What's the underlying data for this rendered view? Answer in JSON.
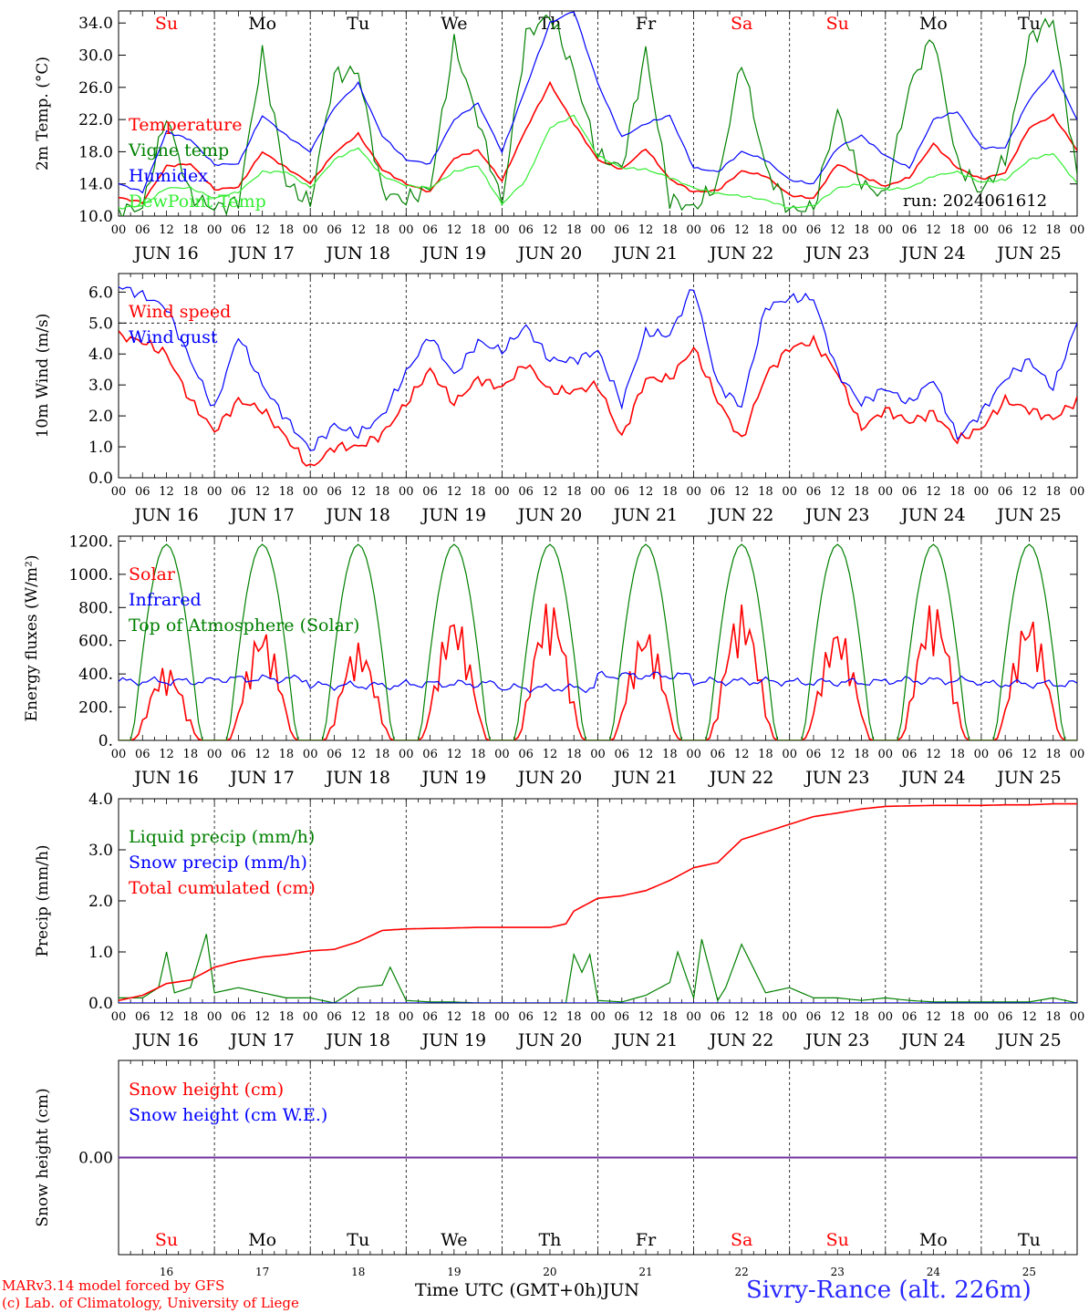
{
  "chart_data": {
    "type": "line",
    "x_range": [
      "2024-06-16 00",
      "2024-06-26 00"
    ],
    "day_labels": [
      "Su",
      "Mo",
      "Tu",
      "We",
      "Th",
      "Fr",
      "Sa",
      "Su",
      "Mo",
      "Tu"
    ],
    "weekend_flags": [
      true,
      false,
      false,
      false,
      false,
      false,
      true,
      true,
      false,
      false
    ],
    "date_labels": [
      "JUN 16",
      "JUN 17",
      "JUN 18",
      "JUN 19",
      "JUN 20",
      "JUN 21",
      "JUN 22",
      "JUN 23",
      "JUN 24",
      "JUN 25"
    ],
    "bottom_date_labels": [
      "16",
      "17",
      "18",
      "19",
      "20",
      "21",
      "22",
      "23",
      "24",
      "25"
    ],
    "hour_tick_labels": [
      "00",
      "06",
      "12",
      "18"
    ],
    "run_label": "run: 2024061612",
    "xlabel": "Time UTC (GMT+0h)",
    "xlabel_month": "JUN",
    "credits": [
      "MARv3.14 model forced by GFS",
      "(c) Lab. of Climatology, University of Liege"
    ],
    "station": "Sivry-Rance (alt. 226m)",
    "colors": {
      "red": "#ff0000",
      "green": "#008000",
      "blue": "#0000ff",
      "lightgreen": "#33ee33",
      "purple": "#7030a0"
    },
    "panels": [
      {
        "id": "temp",
        "ylabel": "2m Temp. (°C)",
        "ylim": [
          10,
          35.5
        ],
        "yticks": [
          10.0,
          14.0,
          18.0,
          22.0,
          26.0,
          30.0,
          34.0
        ],
        "yticklabels": [
          "10.0",
          "14.0",
          "18.0",
          "22.0",
          "26.0",
          "30.0",
          "34.0"
        ],
        "show_day_names": true,
        "series": [
          {
            "name": "Temperature",
            "color": "#ff0000",
            "x": [
              0,
              6,
              12,
              18,
              24,
              30,
              36,
              42,
              48,
              54,
              60,
              66,
              72,
              78,
              84,
              90,
              96,
              102,
              108,
              114,
              120,
              126,
              132,
              138,
              144,
              150,
              156,
              162,
              168,
              174,
              180,
              186,
              192,
              198,
              204,
              210,
              216,
              222,
              228,
              234,
              240
            ],
            "values": [
              12.3,
              11.7,
              16.2,
              16.5,
              13.3,
              13.6,
              18.0,
              16.0,
              14.1,
              17.8,
              20.2,
              15.8,
              14.0,
              13.0,
              17.2,
              18.2,
              14.4,
              20.8,
              26.5,
              21.5,
              17.0,
              15.8,
              18.4,
              14.6,
              13.0,
              13.2,
              15.6,
              15.0,
              12.6,
              12.2,
              16.5,
              15.0,
              13.7,
              14.8,
              19.0,
              16.0,
              14.6,
              15.4,
              21.0,
              22.5,
              18.2
            ]
          },
          {
            "name": "Vigne temp",
            "color": "#008000",
            "x": [
              0,
              6,
              12,
              18,
              24,
              30,
              36,
              42,
              48,
              54,
              60,
              66,
              72,
              78,
              84,
              90,
              96,
              102,
              108,
              114,
              120,
              126,
              132,
              138,
              144,
              150,
              156,
              162,
              168,
              174,
              180,
              186,
              192,
              198,
              204,
              210,
              216,
              222,
              228,
              234,
              240
            ],
            "values": [
              10.8,
              11.0,
              22.5,
              12.5,
              11.0,
              11.8,
              30.2,
              14.0,
              11.5,
              27.5,
              28.0,
              13.0,
              12.0,
              13.5,
              31.5,
              22.0,
              11.5,
              32.5,
              35.0,
              28.0,
              17.5,
              16.0,
              30.5,
              12.0,
              11.0,
              14.0,
              29.5,
              16.0,
              10.7,
              11.0,
              23.0,
              14.0,
              12.5,
              26.0,
              32.5,
              16.5,
              13.0,
              17.0,
              32.0,
              34.5,
              14.8
            ]
          },
          {
            "name": "Humidex",
            "color": "#0000ff",
            "x": [
              0,
              6,
              12,
              18,
              24,
              30,
              36,
              42,
              48,
              54,
              60,
              66,
              72,
              78,
              84,
              90,
              96,
              102,
              108,
              114,
              120,
              126,
              132,
              138,
              144,
              150,
              156,
              162,
              168,
              174,
              180,
              186,
              192,
              198,
              204,
              210,
              216,
              222,
              228,
              234,
              240
            ],
            "values": [
              14.0,
              13.0,
              20.5,
              19.5,
              16.4,
              16.5,
              22.5,
              20.0,
              18.0,
              23.5,
              26.5,
              20.0,
              17.0,
              16.5,
              22.0,
              24.0,
              18.0,
              26.0,
              34.0,
              35.5,
              26.5,
              19.8,
              21.5,
              22.5,
              16.0,
              15.5,
              18.0,
              17.0,
              14.5,
              14.0,
              18.5,
              20.0,
              17.5,
              16.0,
              22.0,
              23.0,
              18.5,
              18.5,
              24.5,
              28.0,
              22.0
            ]
          },
          {
            "name": "DewPoint Temp",
            "color": "#33ee33",
            "x": [
              0,
              6,
              12,
              18,
              24,
              30,
              36,
              42,
              48,
              54,
              60,
              66,
              72,
              78,
              84,
              90,
              96,
              102,
              108,
              114,
              120,
              126,
              132,
              138,
              144,
              150,
              156,
              162,
              168,
              174,
              180,
              186,
              192,
              198,
              204,
              210,
              216,
              222,
              228,
              234,
              240
            ],
            "values": [
              11.0,
              11.3,
              13.5,
              13.5,
              12.2,
              13.0,
              15.5,
              15.5,
              13.5,
              17.0,
              18.5,
              15.0,
              13.8,
              13.5,
              15.5,
              16.3,
              11.5,
              14.5,
              21.0,
              22.5,
              17.5,
              16.0,
              15.8,
              14.8,
              13.5,
              12.8,
              12.5,
              12.0,
              11.0,
              11.3,
              13.5,
              14.0,
              13.3,
              13.5,
              15.0,
              15.5,
              14.2,
              14.5,
              17.0,
              17.8,
              14.0
            ]
          }
        ]
      },
      {
        "id": "wind",
        "ylabel": "10m Wind (m/s)",
        "ylim": [
          0,
          6.6
        ],
        "yticks": [
          0,
          1,
          2,
          3,
          4,
          5,
          6
        ],
        "yticklabels": [
          "0.0",
          "1.0",
          "2.0",
          "3.0",
          "4.0",
          "5.0",
          "6.0"
        ],
        "reference_line": 5.0,
        "series": [
          {
            "name": "Wind speed",
            "color": "#ff0000",
            "x": [
              0,
              6,
              12,
              18,
              24,
              30,
              36,
              42,
              48,
              54,
              60,
              66,
              72,
              78,
              84,
              90,
              96,
              102,
              108,
              114,
              120,
              126,
              132,
              138,
              144,
              150,
              156,
              162,
              168,
              174,
              180,
              186,
              192,
              198,
              204,
              210,
              216,
              222,
              228,
              234,
              240
            ],
            "values": [
              4.6,
              4.4,
              4.0,
              2.5,
              1.5,
              2.5,
              2.2,
              1.3,
              0.3,
              1.0,
              1.0,
              1.4,
              2.4,
              3.5,
              2.4,
              3.2,
              2.9,
              3.7,
              2.8,
              2.8,
              3.0,
              1.3,
              3.2,
              3.2,
              4.2,
              2.5,
              1.2,
              3.3,
              4.2,
              4.4,
              3.4,
              1.6,
              2.2,
              1.8,
              2.1,
              1.2,
              1.6,
              2.5,
              2.2,
              1.9,
              2.5
            ]
          },
          {
            "name": "Wind gust",
            "color": "#0000ff",
            "x": [
              0,
              6,
              12,
              18,
              24,
              30,
              36,
              42,
              48,
              54,
              60,
              66,
              72,
              78,
              84,
              90,
              96,
              102,
              108,
              114,
              120,
              126,
              132,
              138,
              144,
              150,
              156,
              162,
              168,
              174,
              180,
              186,
              192,
              198,
              204,
              210,
              216,
              222,
              228,
              234,
              240
            ],
            "values": [
              6.2,
              5.9,
              5.5,
              3.8,
              2.2,
              4.6,
              3.0,
              1.9,
              0.9,
              1.7,
              1.4,
              2.0,
              3.4,
              4.6,
              3.3,
              4.4,
              4.1,
              4.9,
              3.8,
              3.8,
              4.1,
              2.4,
              4.7,
              4.6,
              6.2,
              3.0,
              2.3,
              5.5,
              5.8,
              5.8,
              3.4,
              2.4,
              2.9,
              2.4,
              3.2,
              1.3,
              2.1,
              3.2,
              3.8,
              2.9,
              5.0
            ]
          }
        ]
      },
      {
        "id": "energy",
        "ylabel": "Energy fluxes (W/m²)",
        "ylim": [
          0,
          1230
        ],
        "yticks": [
          0,
          200,
          400,
          600,
          800,
          1000,
          1200
        ],
        "yticklabels": [
          "0.",
          "200.",
          "400.",
          "600.",
          "800.",
          "1000.",
          "1200."
        ],
        "series": [
          {
            "name": "Solar",
            "color": "#ff0000",
            "daily_peak": [
              450,
              680,
              590,
              770,
              850,
              680,
              820,
              690,
              840,
              760
            ]
          },
          {
            "name": "Infrared",
            "color": "#0000ff",
            "daily_mean": [
              355,
              370,
              330,
              340,
              315,
              390,
              355,
              350,
              360,
              340
            ]
          },
          {
            "name": "Top of Atmosphere (Solar)",
            "color": "#008000",
            "daily_peak": [
              1180,
              1180,
              1180,
              1180,
              1180,
              1180,
              1180,
              1180,
              1180,
              1180
            ]
          }
        ]
      },
      {
        "id": "precip",
        "ylabel": "Precip (mm/h)",
        "ylim": [
          0,
          4.0
        ],
        "yticks": [
          0,
          1,
          2,
          3,
          4
        ],
        "yticklabels": [
          "0.0",
          "1.0",
          "2.0",
          "3.0",
          "4.0"
        ],
        "series": [
          {
            "name": "Liquid precip (mm/h)",
            "color": "#008000",
            "x": [
              0,
              6,
              10,
              12,
              14,
              18,
              22,
              24,
              30,
              36,
              42,
              48,
              54,
              60,
              66,
              68,
              72,
              78,
              84,
              90,
              96,
              102,
              108,
              112,
              114,
              116,
              118,
              120,
              126,
              132,
              138,
              140,
              144,
              146,
              150,
              152,
              156,
              162,
              168,
              174,
              180,
              186,
              192,
              198,
              204,
              210,
              216,
              222,
              228,
              234,
              240
            ],
            "values": [
              0.1,
              0.1,
              0.3,
              1.0,
              0.2,
              0.3,
              1.35,
              0.2,
              0.3,
              0.2,
              0.1,
              0.1,
              0.0,
              0.3,
              0.35,
              0.7,
              0.05,
              0.02,
              0.02,
              0.0,
              0.0,
              0.0,
              0.0,
              0.0,
              0.95,
              0.6,
              0.95,
              0.05,
              0.02,
              0.15,
              0.4,
              1.0,
              0.1,
              1.25,
              0.05,
              0.3,
              1.15,
              0.2,
              0.3,
              0.1,
              0.1,
              0.05,
              0.1,
              0.05,
              0.02,
              0.02,
              0.02,
              0.02,
              0.02,
              0.1,
              0.0
            ]
          },
          {
            "name": "Snow precip (mm/h)",
            "color": "#0000ff",
            "x": [
              0,
              240
            ],
            "values": [
              0,
              0
            ]
          },
          {
            "name": "Total cumulated (cm)",
            "color": "#ff0000",
            "x": [
              0,
              6,
              12,
              18,
              24,
              30,
              36,
              42,
              48,
              54,
              60,
              66,
              72,
              78,
              84,
              90,
              96,
              102,
              108,
              112,
              114,
              120,
              126,
              132,
              138,
              144,
              150,
              156,
              162,
              168,
              174,
              180,
              186,
              192,
              198,
              204,
              210,
              216,
              222,
              228,
              234,
              240
            ],
            "values": [
              0.05,
              0.15,
              0.38,
              0.45,
              0.7,
              0.82,
              0.9,
              0.95,
              1.02,
              1.05,
              1.2,
              1.42,
              1.45,
              1.46,
              1.47,
              1.48,
              1.48,
              1.48,
              1.48,
              1.55,
              1.8,
              2.05,
              2.1,
              2.2,
              2.4,
              2.65,
              2.75,
              3.2,
              3.35,
              3.5,
              3.65,
              3.72,
              3.8,
              3.85,
              3.86,
              3.87,
              3.87,
              3.87,
              3.88,
              3.88,
              3.9,
              3.9
            ]
          }
        ]
      },
      {
        "id": "snow",
        "ylabel": "Snow height (cm)",
        "ylim": [
          -1,
          1
        ],
        "yticks": [
          0
        ],
        "yticklabels": [
          "0.00"
        ],
        "show_day_names_bottom": true,
        "series": [
          {
            "name": "Snow height (cm)",
            "color": "#ff0000",
            "x": [
              0,
              240
            ],
            "values": [
              0,
              0
            ]
          },
          {
            "name": "Snow height (cm W.E.)",
            "color": "#0000ff",
            "x": [
              0,
              240
            ],
            "values": [
              0,
              0
            ]
          }
        ]
      }
    ]
  }
}
